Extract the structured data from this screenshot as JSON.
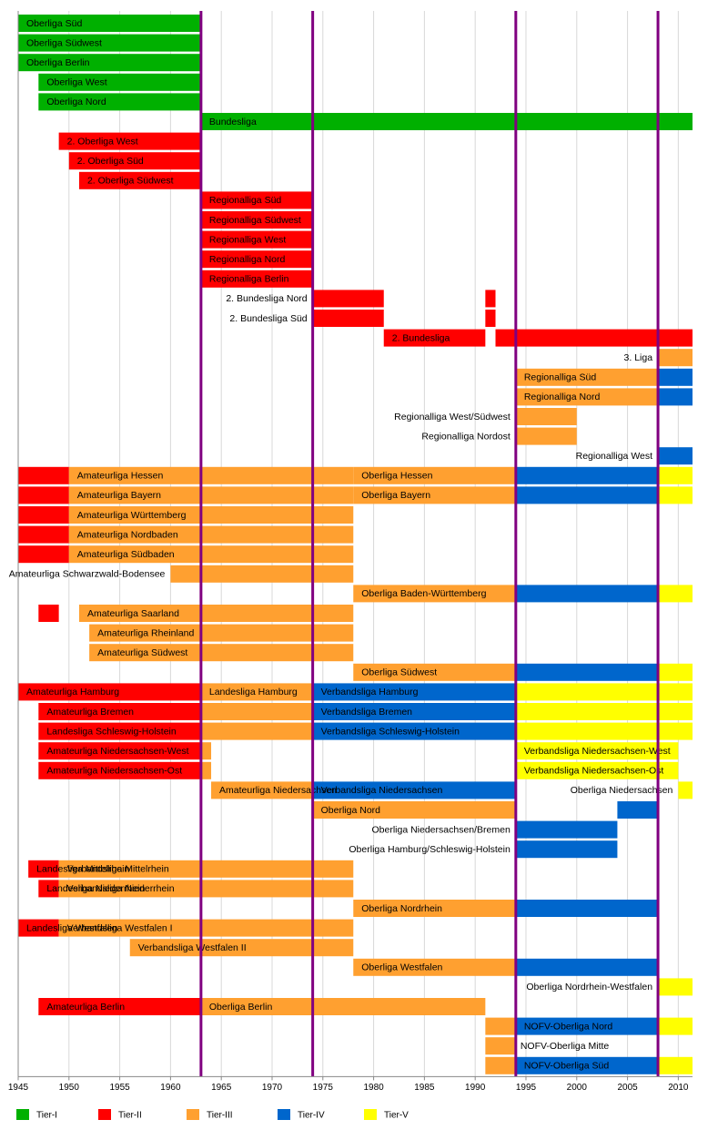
{
  "chart_data": {
    "type": "gantt",
    "xlim": [
      1945,
      2011.4
    ],
    "xticks": [
      1945,
      1950,
      1955,
      1960,
      1965,
      1970,
      1975,
      1980,
      1985,
      1990,
      1995,
      2000,
      2005,
      2010
    ],
    "grid": true,
    "markers": [
      1963,
      1974,
      1994,
      2008
    ],
    "marker_color": "#800080",
    "tiers": [
      {
        "name": "Tier-I",
        "color": "#00b000"
      },
      {
        "name": "Tier-II",
        "color": "#ff0000"
      },
      {
        "name": "Tier-III",
        "color": "#ffa030"
      },
      {
        "name": "Tier-IV",
        "color": "#0066cc"
      },
      {
        "name": "Tier-V",
        "color": "#ffff00"
      }
    ],
    "rows": [
      {
        "segments": [
          {
            "start": 1945,
            "end": 1963,
            "tier": 0,
            "label": "Oberliga Süd"
          }
        ]
      },
      {
        "segments": [
          {
            "start": 1945,
            "end": 1963,
            "tier": 0,
            "label": "Oberliga Südwest"
          }
        ]
      },
      {
        "segments": [
          {
            "start": 1945,
            "end": 1963,
            "tier": 0,
            "label": "Oberliga Berlin"
          }
        ]
      },
      {
        "segments": [
          {
            "start": 1947,
            "end": 1963,
            "tier": 0,
            "label": "Oberliga West"
          }
        ]
      },
      {
        "segments": [
          {
            "start": 1947,
            "end": 1963,
            "tier": 0,
            "label": "Oberliga Nord"
          }
        ]
      },
      {
        "segments": [
          {
            "start": 1963,
            "end": 2011.4,
            "tier": 0,
            "label": "Bundesliga"
          }
        ]
      },
      {
        "segments": [
          {
            "start": 1949,
            "end": 1963,
            "tier": 1,
            "label": "2. Oberliga West"
          }
        ]
      },
      {
        "segments": [
          {
            "start": 1950,
            "end": 1963,
            "tier": 1,
            "label": "2. Oberliga Süd"
          }
        ]
      },
      {
        "segments": [
          {
            "start": 1951,
            "end": 1963,
            "tier": 1,
            "label": "2. Oberliga Südwest"
          }
        ]
      },
      {
        "segments": [
          {
            "start": 1963,
            "end": 1974,
            "tier": 1,
            "label": "Regionalliga Süd"
          }
        ]
      },
      {
        "segments": [
          {
            "start": 1963,
            "end": 1974,
            "tier": 1,
            "label": "Regionalliga Südwest"
          }
        ]
      },
      {
        "segments": [
          {
            "start": 1963,
            "end": 1974,
            "tier": 1,
            "label": "Regionalliga West"
          }
        ]
      },
      {
        "segments": [
          {
            "start": 1963,
            "end": 1974,
            "tier": 1,
            "label": "Regionalliga Nord"
          }
        ]
      },
      {
        "segments": [
          {
            "start": 1963,
            "end": 1974,
            "tier": 1,
            "label": "Regionalliga Berlin"
          }
        ]
      },
      {
        "segments": [
          {
            "start": 1974,
            "end": 1981,
            "tier": 1,
            "label": "2. Bundesliga Nord",
            "label_side": "left"
          },
          {
            "start": 1991,
            "end": 1992,
            "tier": 1
          }
        ]
      },
      {
        "segments": [
          {
            "start": 1974,
            "end": 1981,
            "tier": 1,
            "label": "2. Bundesliga Süd",
            "label_side": "left"
          },
          {
            "start": 1991,
            "end": 1992,
            "tier": 1
          }
        ]
      },
      {
        "segments": [
          {
            "start": 1981,
            "end": 1991,
            "tier": 1,
            "label": "2. Bundesliga"
          },
          {
            "start": 1992,
            "end": 2011.4,
            "tier": 1
          }
        ]
      },
      {
        "segments": [
          {
            "start": 2008,
            "end": 2011.4,
            "tier": 2,
            "label": "3. Liga",
            "label_side": "left"
          }
        ]
      },
      {
        "segments": [
          {
            "start": 1994,
            "end": 2008,
            "tier": 2,
            "label": "Regionalliga Süd"
          },
          {
            "start": 2008,
            "end": 2011.4,
            "tier": 3
          }
        ]
      },
      {
        "segments": [
          {
            "start": 1994,
            "end": 2008,
            "tier": 2,
            "label": "Regionalliga Nord"
          },
          {
            "start": 2008,
            "end": 2011.4,
            "tier": 3
          }
        ]
      },
      {
        "segments": [
          {
            "start": 1994,
            "end": 2000,
            "tier": 2,
            "label": "Regionalliga West/Südwest",
            "label_side": "left"
          }
        ]
      },
      {
        "segments": [
          {
            "start": 1994,
            "end": 2000,
            "tier": 2,
            "label": "Regionalliga Nordost",
            "label_side": "left"
          }
        ]
      },
      {
        "segments": [
          {
            "start": 2008,
            "end": 2011.4,
            "tier": 3,
            "label": "Regionalliga West",
            "label_side": "left"
          }
        ]
      },
      {
        "segments": [
          {
            "start": 1945,
            "end": 1950,
            "tier": 1
          },
          {
            "start": 1950,
            "end": 1978,
            "tier": 2,
            "label": "Amateurliga Hessen"
          },
          {
            "start": 1978,
            "end": 1994,
            "tier": 2,
            "label": "Oberliga Hessen"
          },
          {
            "start": 1994,
            "end": 2008,
            "tier": 3
          },
          {
            "start": 2008,
            "end": 2011.4,
            "tier": 4
          }
        ]
      },
      {
        "segments": [
          {
            "start": 1945,
            "end": 1950,
            "tier": 1
          },
          {
            "start": 1950,
            "end": 1978,
            "tier": 2,
            "label": "Amateurliga Bayern"
          },
          {
            "start": 1978,
            "end": 1994,
            "tier": 2,
            "label": "Oberliga Bayern"
          },
          {
            "start": 1994,
            "end": 2008,
            "tier": 3
          },
          {
            "start": 2008,
            "end": 2011.4,
            "tier": 4
          }
        ]
      },
      {
        "segments": [
          {
            "start": 1945,
            "end": 1950,
            "tier": 1
          },
          {
            "start": 1950,
            "end": 1978,
            "tier": 2,
            "label": "Amateurliga Württemberg"
          }
        ]
      },
      {
        "segments": [
          {
            "start": 1945,
            "end": 1950,
            "tier": 1
          },
          {
            "start": 1950,
            "end": 1978,
            "tier": 2,
            "label": "Amateurliga Nordbaden"
          }
        ]
      },
      {
        "segments": [
          {
            "start": 1945,
            "end": 1950,
            "tier": 1
          },
          {
            "start": 1950,
            "end": 1978,
            "tier": 2,
            "label": "Amateurliga Südbaden"
          }
        ]
      },
      {
        "segments": [
          {
            "start": 1960,
            "end": 1978,
            "tier": 2,
            "label": "Amateurliga Schwarzwald-Bodensee",
            "label_side": "left"
          }
        ]
      },
      {
        "segments": [
          {
            "start": 1978,
            "end": 1994,
            "tier": 2,
            "label": "Oberliga Baden-Württemberg"
          },
          {
            "start": 1994,
            "end": 2008,
            "tier": 3
          },
          {
            "start": 2008,
            "end": 2011.4,
            "tier": 4
          }
        ]
      },
      {
        "segments": [
          {
            "start": 1947,
            "end": 1949,
            "tier": 1
          },
          {
            "start": 1951,
            "end": 1978,
            "tier": 2,
            "label": "Amateurliga Saarland"
          }
        ]
      },
      {
        "segments": [
          {
            "start": 1952,
            "end": 1978,
            "tier": 2,
            "label": "Amateurliga Rheinland"
          }
        ]
      },
      {
        "segments": [
          {
            "start": 1952,
            "end": 1978,
            "tier": 2,
            "label": "Amateurliga Südwest"
          }
        ]
      },
      {
        "segments": [
          {
            "start": 1978,
            "end": 1994,
            "tier": 2,
            "label": "Oberliga Südwest"
          },
          {
            "start": 1994,
            "end": 2008,
            "tier": 3
          },
          {
            "start": 2008,
            "end": 2011.4,
            "tier": 4
          }
        ]
      },
      {
        "segments": [
          {
            "start": 1945,
            "end": 1963,
            "tier": 1,
            "label": "Amateurliga Hamburg"
          },
          {
            "start": 1963,
            "end": 1974,
            "tier": 2,
            "label": "Landesliga Hamburg"
          },
          {
            "start": 1974,
            "end": 1994,
            "tier": 3,
            "label": "Verbandsliga Hamburg"
          },
          {
            "start": 1994,
            "end": 2011.4,
            "tier": 4
          }
        ]
      },
      {
        "segments": [
          {
            "start": 1947,
            "end": 1963,
            "tier": 1,
            "label": "Amateurliga Bremen"
          },
          {
            "start": 1963,
            "end": 1974,
            "tier": 2
          },
          {
            "start": 1974,
            "end": 1994,
            "tier": 3,
            "label": "Verbandsliga Bremen"
          },
          {
            "start": 1994,
            "end": 2011.4,
            "tier": 4
          }
        ]
      },
      {
        "segments": [
          {
            "start": 1947,
            "end": 1963,
            "tier": 1,
            "label": "Landesliga Schleswig-Holstein"
          },
          {
            "start": 1963,
            "end": 1974,
            "tier": 2
          },
          {
            "start": 1974,
            "end": 1994,
            "tier": 3,
            "label": "Verbandsliga Schleswig-Holstein"
          },
          {
            "start": 1994,
            "end": 2011.4,
            "tier": 4
          }
        ]
      },
      {
        "segments": [
          {
            "start": 1947,
            "end": 1963,
            "tier": 1,
            "label": "Amateurliga Niedersachsen-West"
          },
          {
            "start": 1963,
            "end": 1964,
            "tier": 2
          },
          {
            "start": 1994,
            "end": 2010,
            "tier": 4,
            "label": "Verbandsliga Niedersachsen-West"
          }
        ]
      },
      {
        "segments": [
          {
            "start": 1947,
            "end": 1963,
            "tier": 1,
            "label": "Amateurliga Niedersachsen-Ost"
          },
          {
            "start": 1963,
            "end": 1964,
            "tier": 2
          },
          {
            "start": 1994,
            "end": 2010,
            "tier": 4,
            "label": "Verbandsliga Niedersachsen-Ost"
          }
        ]
      },
      {
        "segments": [
          {
            "start": 1964,
            "end": 1974,
            "tier": 2,
            "label": "Amateurliga Niedersachsen"
          },
          {
            "start": 1974,
            "end": 1994,
            "tier": 3,
            "label": "Verbandsliga Niedersachsen"
          },
          {
            "start": 2010,
            "end": 2011.4,
            "tier": 4,
            "label": "Oberliga Niedersachsen",
            "label_side": "left"
          }
        ]
      },
      {
        "segments": [
          {
            "start": 1974,
            "end": 1994,
            "tier": 2,
            "label": "Oberliga Nord"
          },
          {
            "start": 2004,
            "end": 2008,
            "tier": 3
          }
        ]
      },
      {
        "segments": [
          {
            "start": 1994,
            "end": 2004,
            "tier": 3,
            "label": "Oberliga Niedersachsen/Bremen",
            "label_side": "left"
          }
        ]
      },
      {
        "segments": [
          {
            "start": 1994,
            "end": 2004,
            "tier": 3,
            "label": "Oberliga Hamburg/Schleswig-Holstein",
            "label_side": "left"
          }
        ]
      },
      {
        "segments": [
          {
            "start": 1946,
            "end": 1949,
            "tier": 1,
            "label": "Landesliga Mittelrhein"
          },
          {
            "start": 1949,
            "end": 1978,
            "tier": 2,
            "label": "Verbandsliga Mittelrhein"
          }
        ]
      },
      {
        "segments": [
          {
            "start": 1947,
            "end": 1949,
            "tier": 1,
            "label": "Landesliga Niederrhein"
          },
          {
            "start": 1949,
            "end": 1978,
            "tier": 2,
            "label": "Verbandsliga Niederrhein"
          }
        ]
      },
      {
        "segments": [
          {
            "start": 1978,
            "end": 1994,
            "tier": 2,
            "label": "Oberliga Nordrhein"
          },
          {
            "start": 1994,
            "end": 2008,
            "tier": 3
          }
        ]
      },
      {
        "segments": [
          {
            "start": 1945,
            "end": 1949,
            "tier": 1,
            "label": "Landesliga Westfalen"
          },
          {
            "start": 1949,
            "end": 1978,
            "tier": 2,
            "label": "Verbandsliga Westfalen I"
          }
        ]
      },
      {
        "segments": [
          {
            "start": 1956,
            "end": 1978,
            "tier": 2,
            "label": "Verbandsliga Westfalen II"
          }
        ]
      },
      {
        "segments": [
          {
            "start": 1978,
            "end": 1994,
            "tier": 2,
            "label": "Oberliga Westfalen"
          },
          {
            "start": 1994,
            "end": 2008,
            "tier": 3
          }
        ]
      },
      {
        "segments": [
          {
            "start": 2008,
            "end": 2011.4,
            "tier": 4,
            "label": "Oberliga Nordrhein-Westfalen",
            "label_side": "left"
          }
        ]
      },
      {
        "segments": [
          {
            "start": 1947,
            "end": 1963,
            "tier": 1,
            "label": "Amateurliga Berlin"
          },
          {
            "start": 1963,
            "end": 1991,
            "tier": 2,
            "label": "Oberliga Berlin"
          }
        ]
      },
      {
        "segments": [
          {
            "start": 1991,
            "end": 1994,
            "tier": 2
          },
          {
            "start": 1994,
            "end": 2008,
            "tier": 3,
            "label": "NOFV-Oberliga Nord"
          },
          {
            "start": 2008,
            "end": 2011.4,
            "tier": 4
          }
        ]
      },
      {
        "segments": [
          {
            "start": 1991,
            "end": 1994,
            "tier": 2,
            "label": "NOFV-Oberliga Mitte",
            "label_side": "right"
          }
        ]
      },
      {
        "segments": [
          {
            "start": 1991,
            "end": 1994,
            "tier": 2
          },
          {
            "start": 1994,
            "end": 2008,
            "tier": 3,
            "label": "NOFV-Oberliga Süd"
          },
          {
            "start": 2008,
            "end": 2011.4,
            "tier": 4
          }
        ]
      }
    ]
  }
}
